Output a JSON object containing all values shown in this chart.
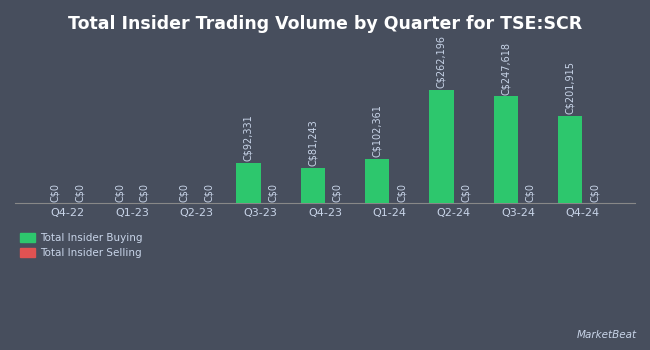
{
  "title": "Total Insider Trading Volume by Quarter for TSE:SCR",
  "quarters": [
    "Q4-22",
    "Q1-23",
    "Q2-23",
    "Q3-23",
    "Q4-23",
    "Q1-24",
    "Q2-24",
    "Q3-24",
    "Q4-24"
  ],
  "buying": [
    0,
    0,
    0,
    92331,
    81243,
    102361,
    262196,
    247618,
    201915
  ],
  "selling": [
    0,
    0,
    0,
    0,
    0,
    0,
    0,
    0,
    0
  ],
  "buy_color": "#2dc76d",
  "sell_color": "#e05252",
  "background_color": "#474e5d",
  "text_color": "#c8d4e8",
  "title_color": "#ffffff",
  "bar_width": 0.38,
  "legend_buy": "Total Insider Buying",
  "legend_sell": "Total Insider Selling",
  "label_fontsize": 7.0,
  "tick_fontsize": 8.0,
  "title_fontsize": 12.5
}
